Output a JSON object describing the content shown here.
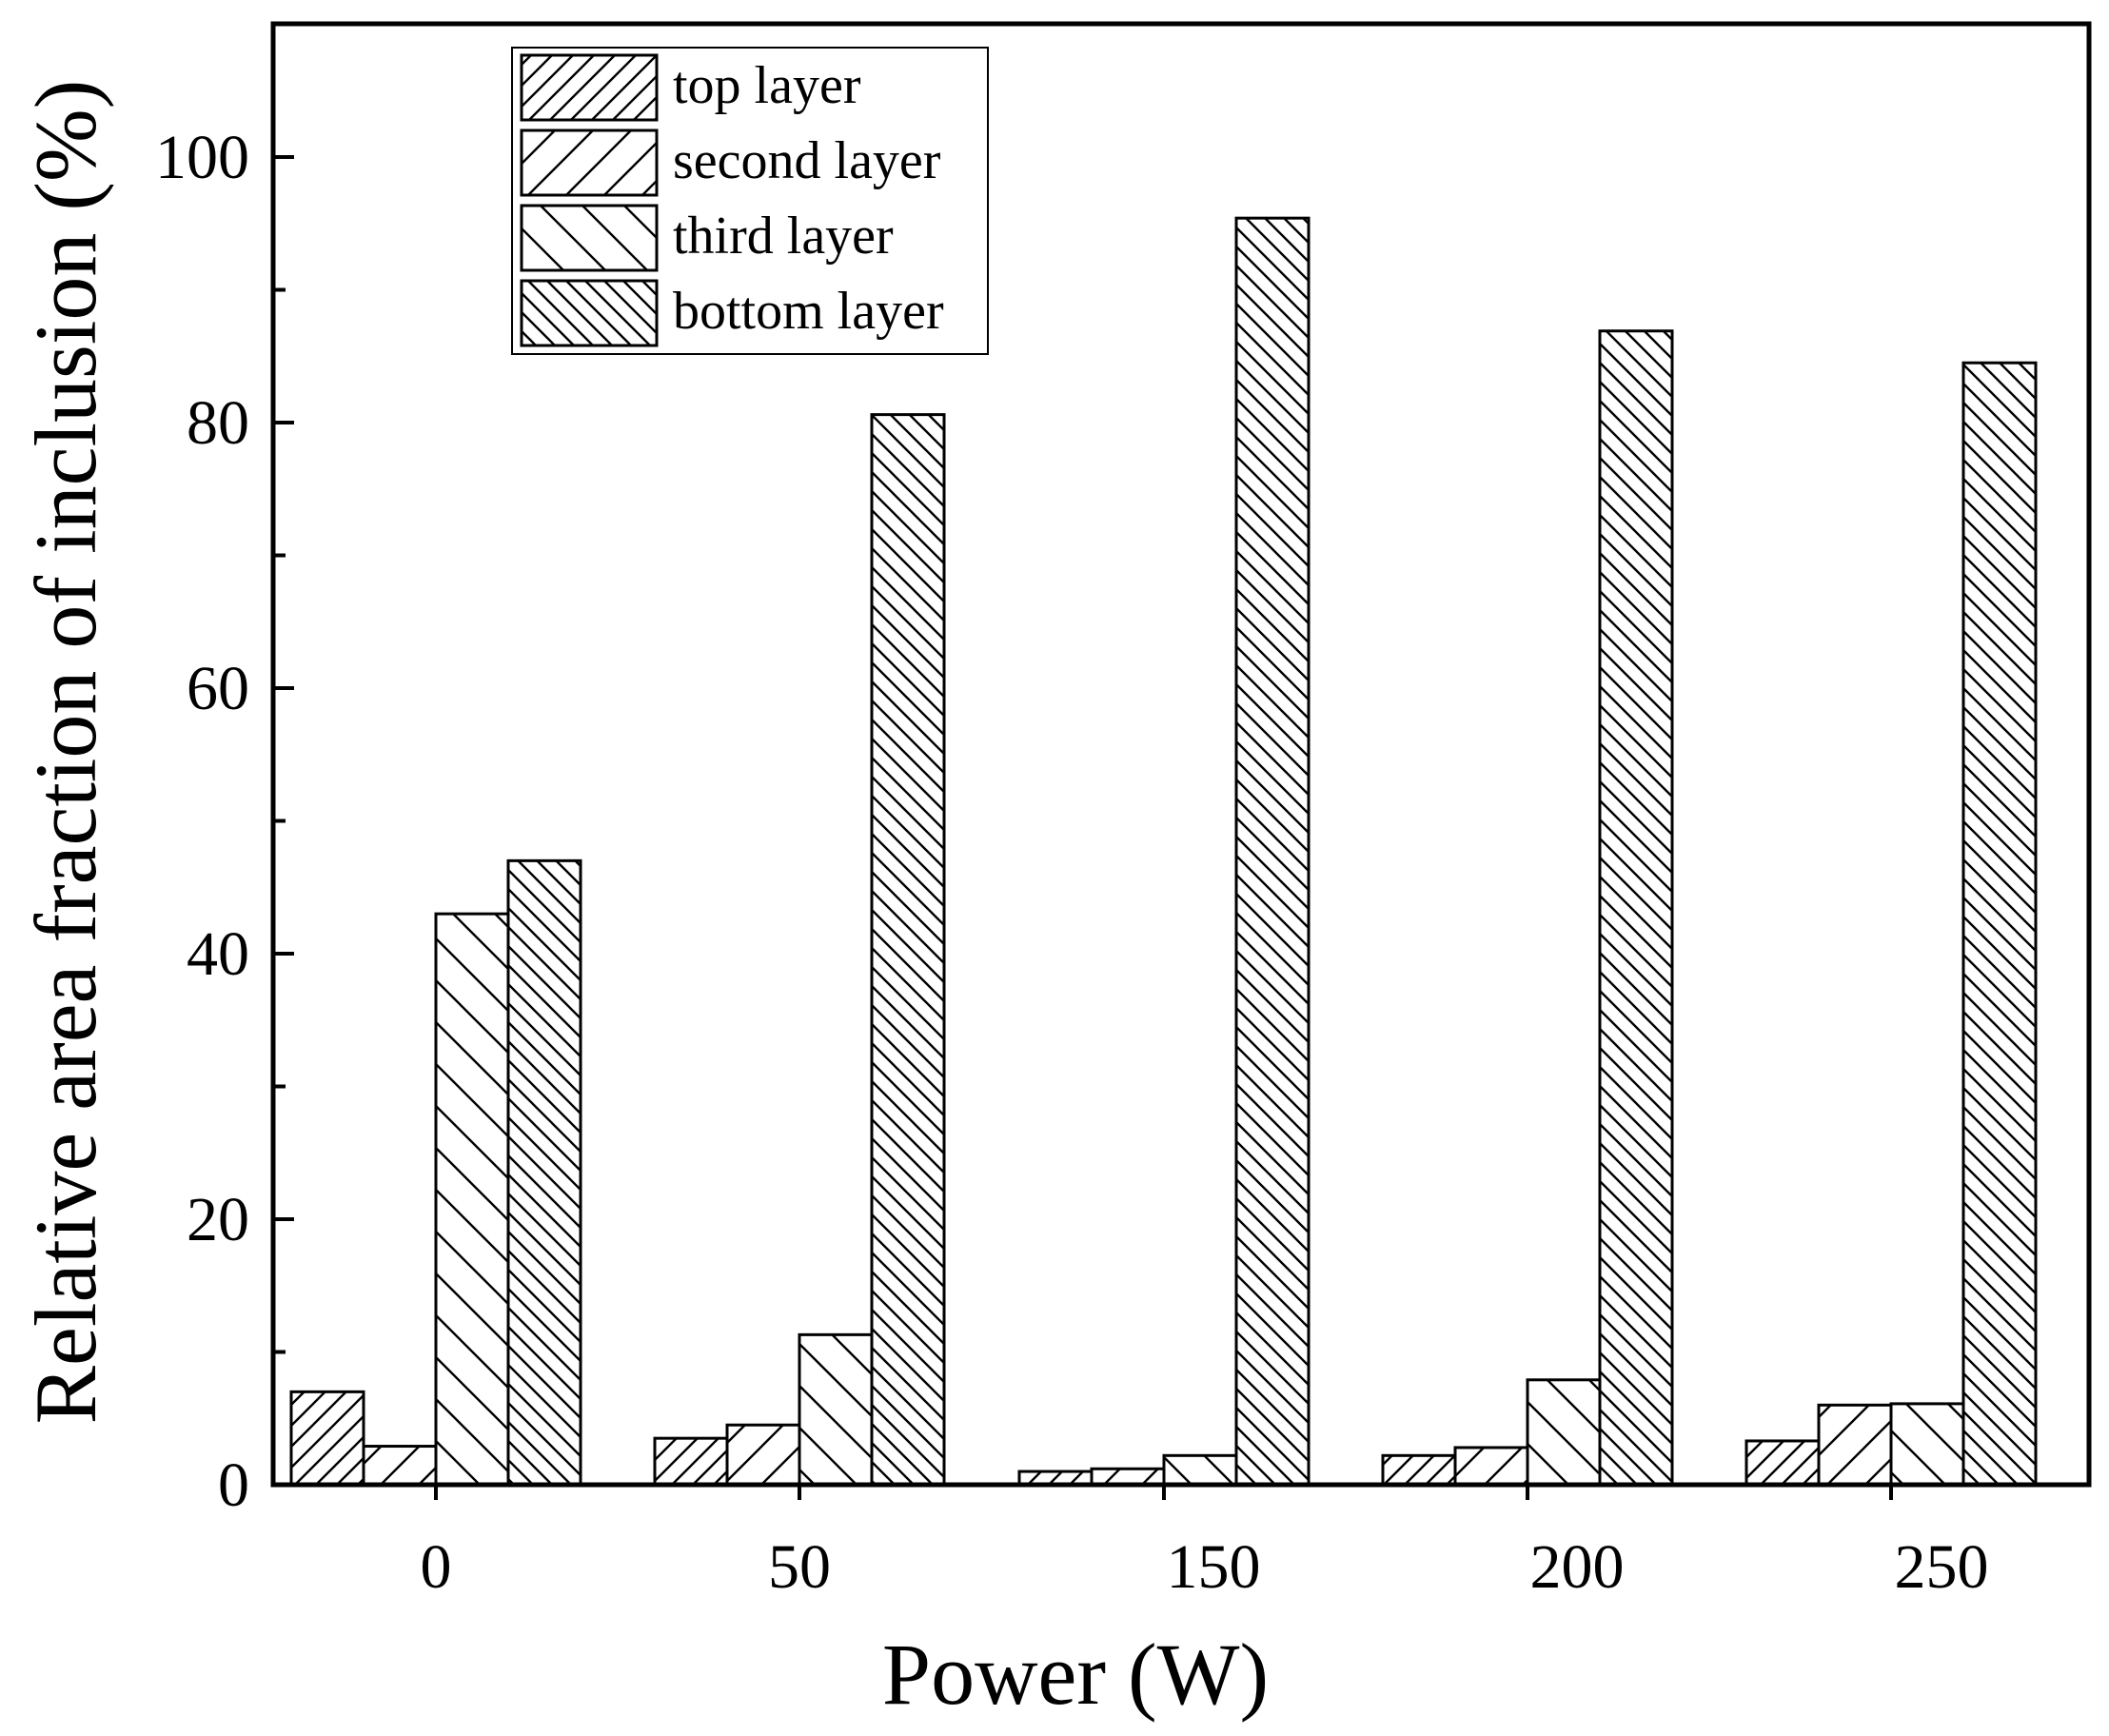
{
  "chart_data": {
    "type": "bar",
    "title": "",
    "xlabel": "Power (W)",
    "ylabel": "Relative area fraction of inclusion (%)",
    "categories": [
      "0",
      "50",
      "150",
      "200",
      "250"
    ],
    "ylim": [
      0,
      110
    ],
    "yticks": [
      "0",
      "20",
      "40",
      "60",
      "80",
      "100"
    ],
    "legend_position": "top-left",
    "grid": false,
    "series": [
      {
        "name": "top layer",
        "pattern": "hatch-fine-forward",
        "values": [
          7,
          3.5,
          1,
          2.2,
          3.3
        ]
      },
      {
        "name": "second layer",
        "pattern": "hatch-wide-forward",
        "values": [
          2.9,
          4.5,
          1.2,
          2.8,
          6
        ]
      },
      {
        "name": "third layer",
        "pattern": "hatch-wide-backward",
        "values": [
          43,
          11.3,
          2.2,
          7.9,
          6.1
        ]
      },
      {
        "name": "bottom layer",
        "pattern": "hatch-fine-backward",
        "values": [
          47,
          80.6,
          95.4,
          86.9,
          84.5
        ]
      }
    ],
    "colors": {
      "stroke": "#000000",
      "fill": "#ffffff"
    }
  }
}
